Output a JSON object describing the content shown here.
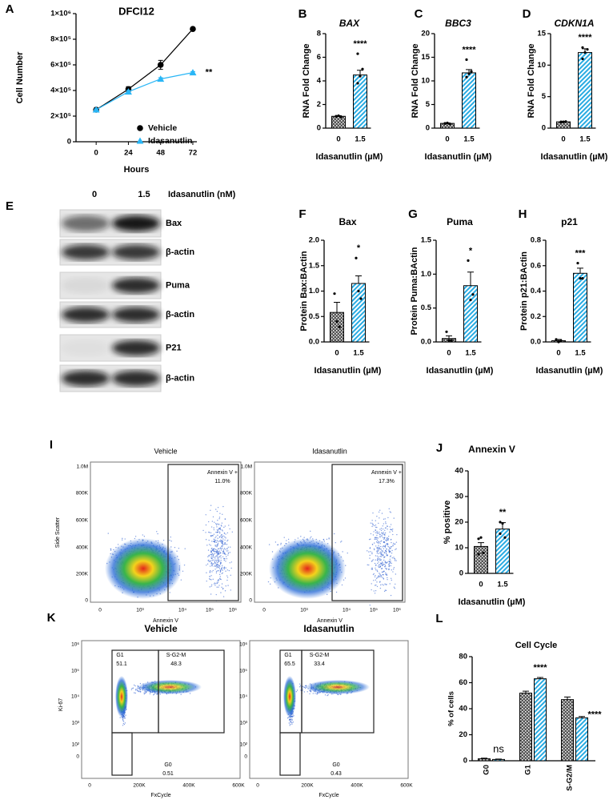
{
  "chart_data": [
    {
      "type": "line",
      "letter": "A",
      "title": "DFCI12",
      "x": [
        0,
        24,
        48,
        72
      ],
      "xlim": [
        -15,
        75
      ],
      "xticks": [
        0,
        24,
        48,
        72
      ],
      "xlabel": "Hours",
      "ylabel": "Cell Number",
      "ylim": [
        0,
        1000000
      ],
      "yticks": [
        0,
        {
          "value": 200000,
          "label": "2×10⁵"
        },
        {
          "value": 400000,
          "label": "4×10⁵"
        },
        {
          "value": 600000,
          "label": "6×10⁵"
        },
        {
          "value": 800000,
          "label": "8×10⁵"
        },
        {
          "value": 1000000,
          "label": "1×10⁶"
        }
      ],
      "series": [
        {
          "name": "Vehicle",
          "color": "#000000",
          "marker": "circle",
          "values": [
            250000,
            410000,
            600000,
            880000
          ],
          "errors": [
            6000,
            20000,
            35000,
            6000
          ]
        },
        {
          "name": "Idasanutlin",
          "color": "#29b6f6",
          "marker": "triangle",
          "values": [
            250000,
            390000,
            490000,
            540000
          ],
          "errors": [
            6000,
            10000,
            10000,
            8000
          ]
        }
      ],
      "annotation": "**"
    },
    {
      "type": "bar",
      "letter": "B",
      "title": "BAX",
      "title_style": "italic",
      "categories": [
        "0",
        "1.5"
      ],
      "values": [
        1.0,
        4.5
      ],
      "errors": [
        0.05,
        0.4
      ],
      "points": [
        [
          1.0,
          1.05,
          0.95,
          1.0
        ],
        [
          3.8,
          4.4,
          5.0,
          6.3
        ]
      ],
      "colors": [
        "#555555",
        "#29abe2"
      ],
      "hatch": [
        "crosshatch",
        "stripes"
      ],
      "ylim": [
        0,
        8
      ],
      "yticks": [
        0,
        2,
        4,
        6,
        8
      ],
      "ylabel": "RNA Fold Change",
      "xlabel": "Idasanutlin (µM)",
      "annotation": "****"
    },
    {
      "type": "bar",
      "letter": "C",
      "title": "BBC3",
      "title_style": "italic",
      "categories": [
        "0",
        "1.5"
      ],
      "values": [
        1.0,
        11.7
      ],
      "errors": [
        0.1,
        0.7
      ],
      "points": [
        [
          1.0,
          1.1,
          0.9,
          1.0
        ],
        [
          10.8,
          11.5,
          12.0,
          14.5
        ]
      ],
      "colors": [
        "#555555",
        "#29abe2"
      ],
      "hatch": [
        "crosshatch",
        "stripes"
      ],
      "ylim": [
        0,
        20
      ],
      "yticks": [
        0,
        5,
        10,
        15,
        20
      ],
      "ylabel": "RNA Fold Change",
      "xlabel": "Idasanutlin (µM)",
      "annotation": "****"
    },
    {
      "type": "bar",
      "letter": "D",
      "title": "CDKN1A",
      "title_style": "italic",
      "categories": [
        "0",
        "1.5"
      ],
      "values": [
        1.0,
        12.0
      ],
      "errors": [
        0.05,
        0.6
      ],
      "points": [
        [
          1.0,
          1.0,
          1.05,
          0.95
        ],
        [
          11.0,
          12.0,
          12.5,
          12.8
        ]
      ],
      "colors": [
        "#555555",
        "#29abe2"
      ],
      "hatch": [
        "crosshatch",
        "stripes"
      ],
      "ylim": [
        0,
        15
      ],
      "yticks": [
        0,
        5,
        10,
        15
      ],
      "ylabel": "RNA Fold Change",
      "xlabel": "Idasanutlin (µM)",
      "annotation": "****"
    },
    {
      "type": "bar",
      "letter": "F",
      "title": "Bax",
      "title_style": "normal",
      "categories": [
        "0",
        "1.5"
      ],
      "values": [
        0.58,
        1.15
      ],
      "errors": [
        0.2,
        0.15
      ],
      "points": [
        [
          0.95,
          0.4,
          0.3
        ],
        [
          1.65,
          1.0,
          0.85
        ]
      ],
      "colors": [
        "#555555",
        "#29abe2"
      ],
      "hatch": [
        "crosshatch",
        "stripes"
      ],
      "ylim": [
        0,
        2
      ],
      "yticks": [
        {
          "value": 0,
          "label": "0.0"
        },
        0.5,
        {
          "value": 1,
          "label": "1.0"
        },
        1.5,
        {
          "value": 2,
          "label": "2.0"
        }
      ],
      "ylabel": "Protein Bax:BActin",
      "xlabel": "Idasanutlin (µM)",
      "annotation": "*"
    },
    {
      "type": "bar",
      "letter": "G",
      "title": "Puma",
      "title_style": "normal",
      "categories": [
        "0",
        "1.5"
      ],
      "values": [
        0.05,
        0.83
      ],
      "errors": [
        0.04,
        0.2
      ],
      "points": [
        [
          0.15,
          0.02,
          0.02
        ],
        [
          1.2,
          0.62,
          0.7
        ]
      ],
      "colors": [
        "#555555",
        "#29abe2"
      ],
      "hatch": [
        "crosshatch",
        "stripes"
      ],
      "ylim": [
        0,
        1.5
      ],
      "yticks": [
        {
          "value": 0,
          "label": "0.0"
        },
        0.5,
        {
          "value": 1,
          "label": "1.0"
        },
        1.5
      ],
      "ylabel": "Protein Puma:BActin",
      "xlabel": "Idasanutlin (µM)",
      "annotation": "*"
    },
    {
      "type": "bar",
      "letter": "H",
      "title": "p21",
      "title_style": "normal",
      "categories": [
        "0",
        "1.5"
      ],
      "values": [
        0.01,
        0.54
      ],
      "errors": [
        0.01,
        0.04
      ],
      "points": [
        [
          0.02,
          0.0,
          0.01
        ],
        [
          0.62,
          0.5,
          0.5
        ]
      ],
      "colors": [
        "#555555",
        "#29abe2"
      ],
      "hatch": [
        "crosshatch",
        "stripes"
      ],
      "ylim": [
        0,
        0.8
      ],
      "yticks": [
        {
          "value": 0,
          "label": "0.0"
        },
        0.2,
        0.4,
        0.6,
        0.8
      ],
      "ylabel": "Protein p21:BActin",
      "xlabel": "Idasanutlin (µM)",
      "annotation": "***"
    },
    {
      "type": "bar",
      "letter": "J",
      "title": "Annexin V",
      "title_style": "normal",
      "categories": [
        "0",
        "1.5"
      ],
      "values": [
        10.5,
        17.3
      ],
      "errors": [
        1.5,
        2.5
      ],
      "points": [
        [
          13.5,
          14.0,
          8.0,
          7.5
        ],
        [
          20.0,
          19.5,
          14.0,
          15.5
        ]
      ],
      "colors": [
        "#555555",
        "#29abe2"
      ],
      "hatch": [
        "crosshatch",
        "stripes"
      ],
      "ylim": [
        0,
        40
      ],
      "yticks": [
        0,
        10,
        20,
        30,
        40
      ],
      "ylabel": "% positive",
      "xlabel": "Idasanutlin (µM)",
      "annotation": "**"
    },
    {
      "type": "grouped_bar",
      "letter": "L",
      "title": "Cell Cycle",
      "categories": [
        "G0",
        "G1",
        "S-G2/M"
      ],
      "ylim": [
        0,
        80
      ],
      "yticks": [
        0,
        20,
        40,
        60,
        80
      ],
      "ylabel": "% of cells",
      "series": [
        {
          "color": "#555555",
          "hatch": "crosshatch",
          "values": [
            1.5,
            52,
            47
          ],
          "errors": [
            0.5,
            1.5,
            2
          ]
        },
        {
          "color": "#29abe2",
          "hatch": "stripes",
          "values": [
            1.0,
            63,
            33
          ],
          "errors": [
            0.3,
            1,
            1
          ]
        }
      ],
      "annotations": [
        "ns",
        "****",
        "****"
      ]
    }
  ],
  "blot": {
    "letter": "E",
    "lanes": [
      "0",
      "1.5"
    ],
    "treatment": "Idasanutlin (nM)",
    "bands": [
      "Bax",
      "β-actin",
      "Puma",
      "β-actin",
      "P21",
      "β-actin"
    ]
  },
  "flow_annexin": {
    "letter": "I",
    "ylabel": "Side Scatter",
    "xlabel": "Annexin V",
    "yticks": [
      "0",
      "200K",
      "400K",
      "600K",
      "800K",
      "1.0M"
    ],
    "xticks": [
      "0",
      "10³",
      "10⁴",
      "10⁵",
      "10⁶"
    ],
    "plots": [
      {
        "title": "Vehicle",
        "gate": "Annexin V +",
        "gate_value": "11.0%"
      },
      {
        "title": "Idasanutlin",
        "gate": "Annexin V +",
        "gate_value": "17.3%"
      }
    ]
  },
  "flow_cycle": {
    "letter": "K",
    "ylabel": "Ki-67",
    "xlabel": "FxCycle",
    "yticks": [
      "0",
      "10²",
      "10³",
      "10⁴",
      "10⁵",
      "10⁶"
    ],
    "xticks": [
      "0",
      "200K",
      "400K",
      "600K"
    ],
    "plots": [
      {
        "title": "Vehicle",
        "g1": "G1",
        "g1_value": "51.1",
        "s": "S-G2-M",
        "s_value": "48.3",
        "g0": "G0",
        "g0_value": "0.51"
      },
      {
        "title": "Idasanutlin",
        "g1": "G1",
        "g1_value": "65.5",
        "s": "S-G2-M",
        "s_value": "33.4",
        "g0": "G0",
        "g0_value": "0.43"
      }
    ]
  }
}
